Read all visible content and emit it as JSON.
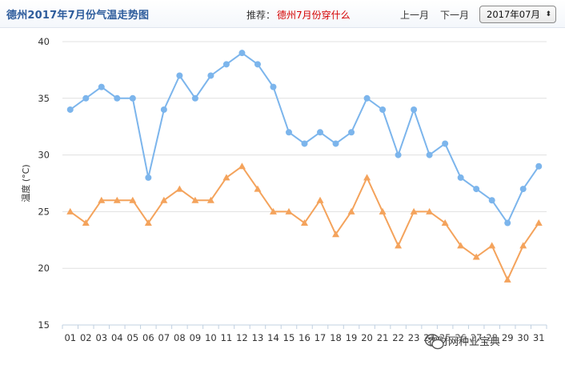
{
  "header": {
    "title": "德州2017年7月份气温走势图",
    "rec_label": "推荐：",
    "rec_link": "德州7月份穿什么",
    "prev_label": "上一月",
    "next_label": "下一月",
    "month_value": "2017年07月",
    "select_arrow": "⬍"
  },
  "colors": {
    "high": "#7cb5ec",
    "low": "#f4a35c",
    "grid": "#e0e0e0"
  },
  "chart_data": {
    "type": "line",
    "title": "德州2017年7月份气温走势图",
    "ylabel": "温度 (°C)",
    "xlabel": "",
    "ylim": [
      15,
      40
    ],
    "yticks": [
      15,
      20,
      25,
      30,
      35,
      40
    ],
    "grid": true,
    "categories": [
      "01",
      "02",
      "03",
      "04",
      "05",
      "06",
      "07",
      "08",
      "09",
      "10",
      "11",
      "12",
      "13",
      "14",
      "15",
      "16",
      "17",
      "18",
      "19",
      "20",
      "21",
      "22",
      "23",
      "24",
      "25",
      "26",
      "27",
      "28",
      "29",
      "30",
      "31"
    ],
    "series": [
      {
        "values": [
          34,
          35,
          36,
          35,
          35,
          28,
          34,
          37,
          35,
          37,
          38,
          39,
          38,
          36,
          32,
          31,
          32,
          31,
          32,
          35,
          34,
          30,
          34,
          30,
          31,
          28,
          27,
          26,
          24,
          27,
          29
        ]
      },
      {
        "values": [
          25,
          24,
          26,
          26,
          26,
          24,
          26,
          27,
          26,
          26,
          28,
          29,
          27,
          25,
          25,
          24,
          26,
          23,
          25,
          28,
          25,
          22,
          25,
          25,
          24,
          22,
          21,
          22,
          19,
          22,
          24
        ]
      }
    ]
  },
  "watermark": {
    "text": "农财网种业宝典"
  }
}
